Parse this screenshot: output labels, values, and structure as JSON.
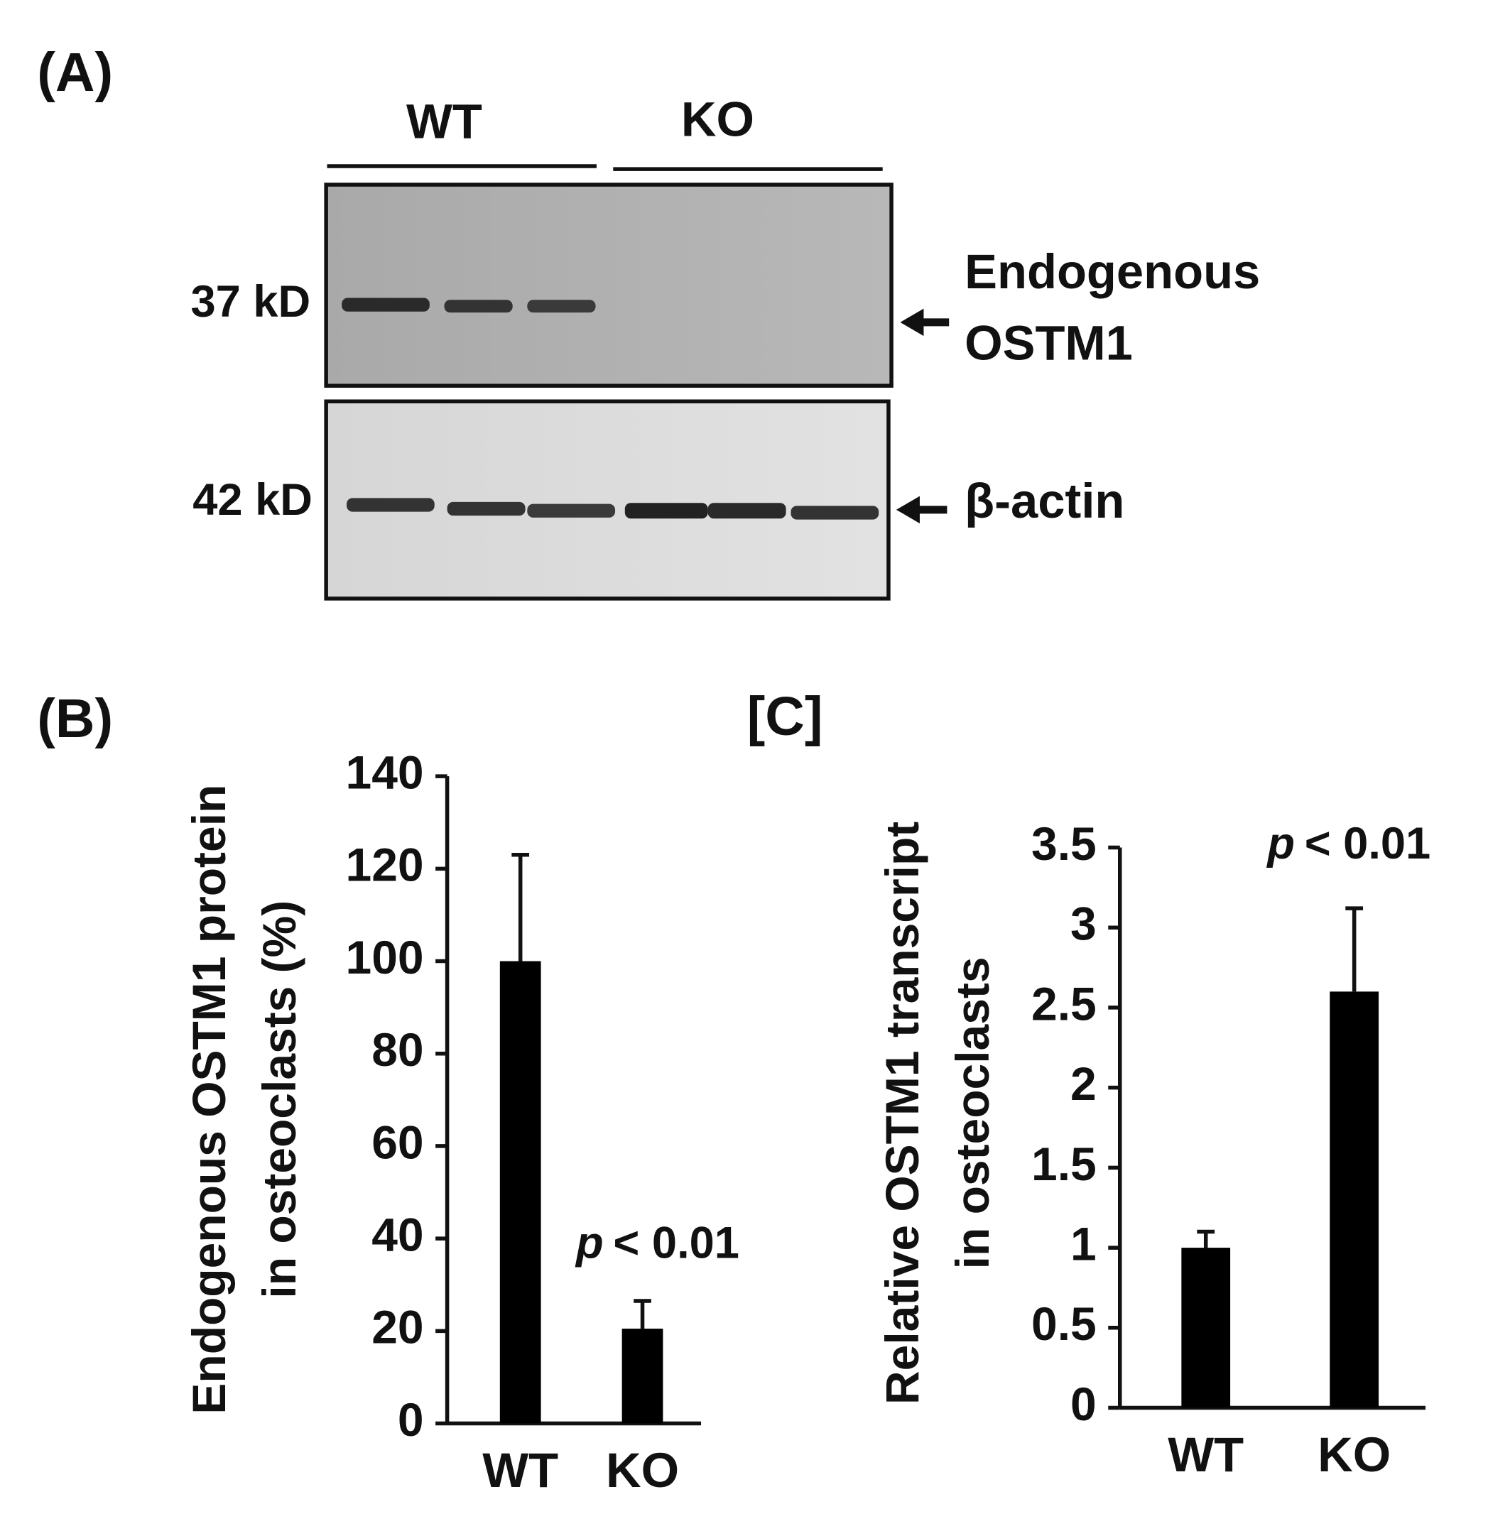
{
  "blot": {
    "label": "(A)",
    "groups": [
      "WT",
      "KO"
    ],
    "markers": [
      "37 kD",
      "42 kD"
    ],
    "targets": [
      [
        "Endogenous",
        "OSTM1"
      ],
      [
        "β-actin"
      ]
    ]
  },
  "chart_data": [
    {
      "type": "bar",
      "panel": "(B)",
      "ylabel": [
        "Endogenous OSTM1 protein",
        "in osteoclasts  (%)"
      ],
      "categories": [
        "WT",
        "KO"
      ],
      "values": [
        100,
        20.5
      ],
      "errors": [
        23,
        6
      ],
      "color": "#000000",
      "ylim": [
        0,
        140
      ],
      "yticks": [
        0,
        20,
        40,
        60,
        80,
        100,
        120,
        140
      ],
      "annotation": [
        "p",
        "< 0.01"
      ]
    },
    {
      "type": "bar",
      "panel": "[C]",
      "ylabel": [
        "Relative OSTM1 transcript",
        "in osteoclasts"
      ],
      "categories": [
        "WT",
        "KO"
      ],
      "values": [
        1.0,
        2.6
      ],
      "errors": [
        0.1,
        0.52
      ],
      "color": "#000000",
      "ylim": [
        0,
        3.5
      ],
      "yticks": [
        0,
        0.5,
        1,
        1.5,
        2,
        2.5,
        3,
        3.5
      ],
      "annotation": [
        "p",
        "< 0.01"
      ]
    }
  ]
}
